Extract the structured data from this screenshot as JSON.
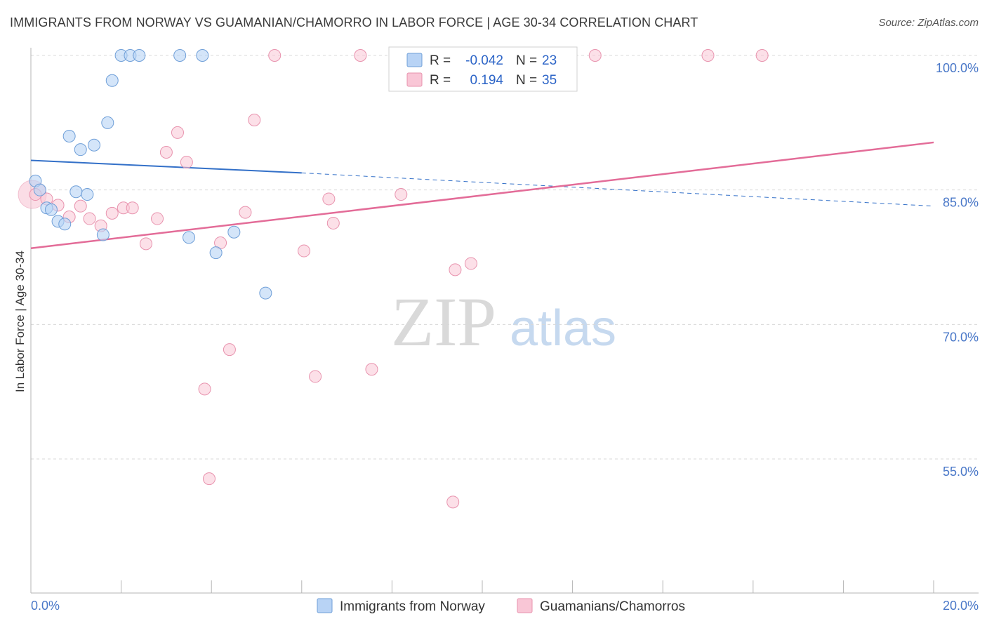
{
  "title": "IMMIGRANTS FROM NORWAY VS GUAMANIAN/CHAMORRO IN LABOR FORCE | AGE 30-34 CORRELATION CHART",
  "source": "Source: ZipAtlas.com",
  "watermark": {
    "zip": "ZIP",
    "atlas": "atlas"
  },
  "colors": {
    "norway_fill": "#b8d3f5",
    "norway_stroke": "#6f9fd8",
    "norway_line": "#3370c8",
    "guam_fill": "#f9c6d6",
    "guam_stroke": "#e893ae",
    "guam_line": "#e36c98",
    "grid": "#d8d8d8",
    "tick_text": "#4a78c8"
  },
  "legend": {
    "rows": [
      {
        "r_label": "R =",
        "r_value": "-0.042",
        "n_label": "N =",
        "n_value": "23"
      },
      {
        "r_label": "R =",
        "r_value": "0.194",
        "n_label": "N =",
        "n_value": "35"
      }
    ]
  },
  "chart_data": {
    "type": "scatter",
    "xlabel": "",
    "ylabel": "In Labor Force | Age 30-34",
    "xlim": [
      0,
      20
    ],
    "ylim": [
      40,
      101.5
    ],
    "x_tick_labels": [
      "0.0%",
      "20.0%"
    ],
    "y_ticks": [
      55,
      70,
      85,
      100
    ],
    "y_tick_labels": [
      "55.0%",
      "70.0%",
      "85.0%",
      "100.0%"
    ],
    "series": [
      {
        "name": "Immigrants from Norway",
        "points": [
          [
            0.1,
            86.0
          ],
          [
            0.2,
            85.0
          ],
          [
            0.35,
            83.0
          ],
          [
            0.45,
            82.8
          ],
          [
            0.6,
            81.5
          ],
          [
            0.75,
            81.2
          ],
          [
            0.85,
            91.0
          ],
          [
            1.0,
            84.8
          ],
          [
            1.1,
            89.5
          ],
          [
            1.25,
            84.5
          ],
          [
            1.4,
            90.0
          ],
          [
            1.6,
            80.0
          ],
          [
            1.7,
            92.5
          ],
          [
            1.8,
            97.2
          ],
          [
            2.0,
            100.0
          ],
          [
            2.2,
            100.0
          ],
          [
            2.4,
            100.0
          ],
          [
            3.3,
            100.0
          ],
          [
            3.5,
            79.7
          ],
          [
            3.8,
            100.0
          ],
          [
            4.1,
            78.0
          ],
          [
            4.5,
            80.3
          ],
          [
            5.2,
            73.5
          ]
        ],
        "trend": {
          "x": [
            0,
            6.0
          ],
          "y": [
            88.3,
            86.9
          ],
          "dashed_to": [
            20,
            83.2
          ]
        }
      },
      {
        "name": "Guamanians/Chamorros",
        "points": [
          [
            0.1,
            84.5
          ],
          [
            0.35,
            84.0
          ],
          [
            0.6,
            83.3
          ],
          [
            0.85,
            82.0
          ],
          [
            1.1,
            83.2
          ],
          [
            1.3,
            81.8
          ],
          [
            1.55,
            81.0
          ],
          [
            1.8,
            82.4
          ],
          [
            2.05,
            83.0
          ],
          [
            2.25,
            83.0
          ],
          [
            2.55,
            79.0
          ],
          [
            2.8,
            81.8
          ],
          [
            3.0,
            89.2
          ],
          [
            3.25,
            91.4
          ],
          [
            3.45,
            88.1
          ],
          [
            3.85,
            62.8
          ],
          [
            3.95,
            52.8
          ],
          [
            4.2,
            79.1
          ],
          [
            4.4,
            67.2
          ],
          [
            4.75,
            82.5
          ],
          [
            4.95,
            92.8
          ],
          [
            5.4,
            100.0
          ],
          [
            6.05,
            78.2
          ],
          [
            6.3,
            64.2
          ],
          [
            6.6,
            84.0
          ],
          [
            6.7,
            81.3
          ],
          [
            7.3,
            100.0
          ],
          [
            7.55,
            65.0
          ],
          [
            8.2,
            84.5
          ],
          [
            9.35,
            50.2
          ],
          [
            9.4,
            76.1
          ],
          [
            9.75,
            76.8
          ],
          [
            12.5,
            100.0
          ],
          [
            15.0,
            100.0
          ],
          [
            16.2,
            100.0
          ]
        ],
        "trend": {
          "x": [
            0,
            20
          ],
          "y": [
            78.5,
            90.3
          ]
        }
      }
    ]
  }
}
